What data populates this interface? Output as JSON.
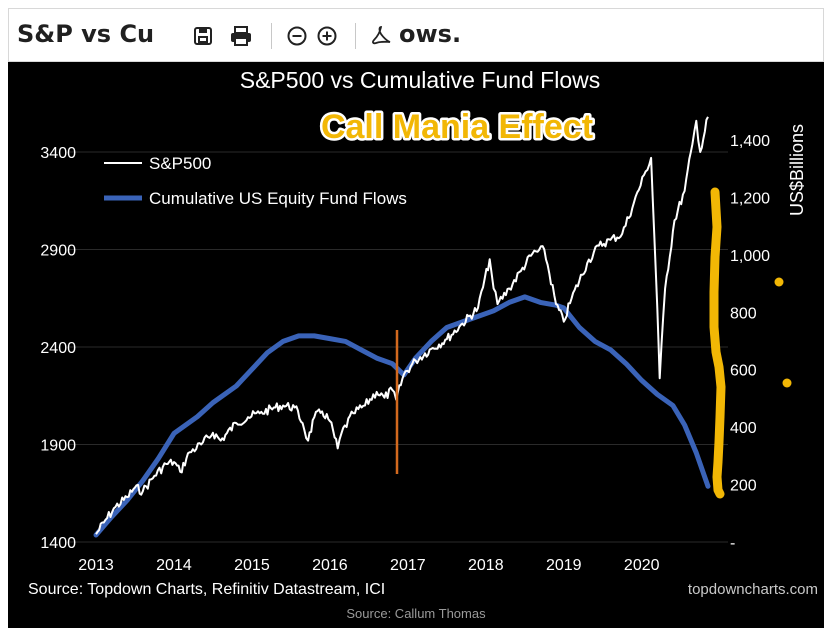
{
  "toolbar": {
    "title_left": "S&P vs Cu",
    "title_right": "ows."
  },
  "footer": {
    "source_credit": "Source: Callum Thomas"
  },
  "colors": {
    "sp500_line": "#ffffff",
    "fund_flows_line": "#3a63b8",
    "marker_line": "#d2691e",
    "annotation": "#f2b705",
    "background": "#000000"
  },
  "chart_data": {
    "type": "line",
    "title": "S&P500 vs Cumulative Fund Flows",
    "annotation": "Call Mania Effect",
    "source": "Source: Topdown Charts, Refinitiv Datastream, ICI",
    "watermark": "topdowncharts.com",
    "x_ticks": [
      "2013",
      "2014",
      "2015",
      "2016",
      "2017",
      "2018",
      "2019",
      "2020"
    ],
    "x_range": [
      2013.0,
      2020.85
    ],
    "y_left": {
      "ticks": [
        "3400",
        "2900",
        "2400",
        "1900",
        "1400"
      ],
      "range": [
        1400,
        3400
      ]
    },
    "y_right": {
      "label": "US$Billions",
      "ticks": [
        "1,400",
        "1,200",
        "1,000",
        "800",
        "600",
        "400",
        "200",
        "-"
      ],
      "range": [
        0,
        1400
      ]
    },
    "legend_position": "top-left",
    "series": [
      {
        "name": "S&P500",
        "axis": "left",
        "x": [
          2013.0,
          2013.1,
          2013.25,
          2013.4,
          2013.5,
          2013.6,
          2013.75,
          2013.9,
          2014.0,
          2014.08,
          2014.2,
          2014.35,
          2014.5,
          2014.6,
          2014.8,
          2014.95,
          2015.1,
          2015.3,
          2015.4,
          2015.55,
          2015.65,
          2015.72,
          2015.8,
          2015.9,
          2016.0,
          2016.1,
          2016.15,
          2016.3,
          2016.45,
          2016.6,
          2016.7,
          2016.8,
          2016.85,
          2016.95,
          2017.1,
          2017.3,
          2017.5,
          2017.7,
          2017.9,
          2018.05,
          2018.1,
          2018.15,
          2018.3,
          2018.45,
          2018.6,
          2018.75,
          2018.9,
          2019.0,
          2019.1,
          2019.3,
          2019.45,
          2019.6,
          2019.75,
          2019.9,
          2020.05,
          2020.12,
          2020.2,
          2020.23,
          2020.3,
          2020.42,
          2020.55,
          2020.65,
          2020.7,
          2020.75,
          2020.85
        ],
        "y": [
          1440,
          1500,
          1580,
          1630,
          1680,
          1660,
          1740,
          1800,
          1810,
          1760,
          1860,
          1900,
          1960,
          1920,
          2010,
          2040,
          2060,
          2090,
          2100,
          2090,
          2010,
          1920,
          2040,
          2070,
          2020,
          1880,
          1960,
          2060,
          2100,
          2170,
          2140,
          2180,
          2130,
          2260,
          2330,
          2390,
          2440,
          2520,
          2600,
          2850,
          2700,
          2620,
          2700,
          2790,
          2880,
          2900,
          2620,
          2530,
          2650,
          2830,
          2920,
          2950,
          2980,
          3140,
          3300,
          3370,
          2600,
          2240,
          2700,
          3050,
          3200,
          3440,
          3560,
          3400,
          3580
        ]
      },
      {
        "name": "Cumulative US Equity Fund Flows",
        "axis": "right",
        "x": [
          2013.0,
          2013.2,
          2013.4,
          2013.6,
          2013.8,
          2014.0,
          2014.3,
          2014.5,
          2014.8,
          2015.0,
          2015.2,
          2015.4,
          2015.6,
          2015.8,
          2016.0,
          2016.2,
          2016.4,
          2016.6,
          2016.8,
          2016.95,
          2017.1,
          2017.3,
          2017.5,
          2017.7,
          2017.9,
          2018.1,
          2018.3,
          2018.5,
          2018.7,
          2018.9,
          2019.0,
          2019.2,
          2019.4,
          2019.6,
          2019.8,
          2020.0,
          2020.2,
          2020.4,
          2020.55,
          2020.7,
          2020.85
        ],
        "y": [
          25,
          90,
          150,
          220,
          300,
          390,
          450,
          500,
          560,
          620,
          680,
          720,
          740,
          740,
          730,
          720,
          690,
          660,
          640,
          600,
          660,
          720,
          770,
          790,
          810,
          830,
          860,
          880,
          860,
          850,
          840,
          770,
          720,
          690,
          640,
          580,
          530,
          490,
          420,
          320,
          200
        ]
      }
    ]
  }
}
